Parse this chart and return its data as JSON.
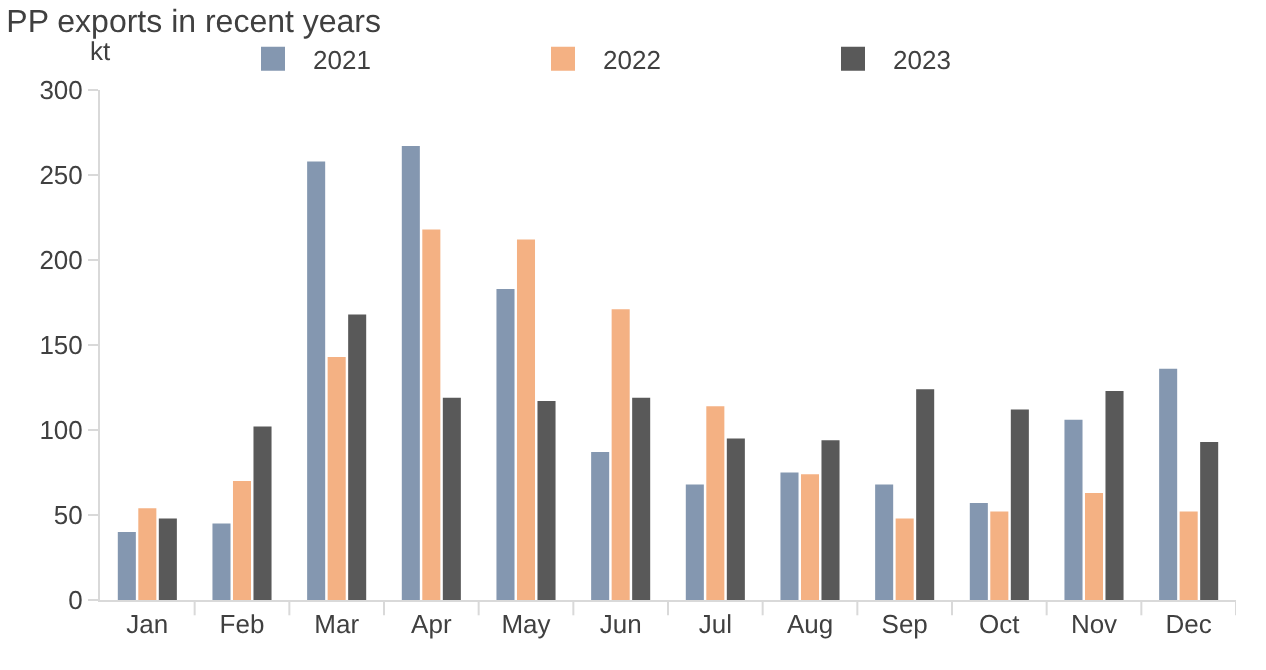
{
  "chart_data": {
    "type": "bar",
    "title": "PP exports in recent years",
    "ylabel": "kt",
    "categories": [
      "Jan",
      "Feb",
      "Mar",
      "Apr",
      "May",
      "Jun",
      "Jul",
      "Aug",
      "Sep",
      "Oct",
      "Nov",
      "Dec"
    ],
    "series": [
      {
        "name": "2021",
        "color": "#8497b0",
        "values": [
          40,
          45,
          258,
          267,
          183,
          87,
          68,
          75,
          68,
          57,
          106,
          136
        ]
      },
      {
        "name": "2022",
        "color": "#f4b183",
        "values": [
          54,
          70,
          143,
          218,
          212,
          171,
          114,
          74,
          48,
          52,
          63,
          52
        ]
      },
      {
        "name": "2023",
        "color": "#595959",
        "values": [
          48,
          102,
          168,
          119,
          117,
          119,
          95,
          94,
          124,
          112,
          123,
          93
        ]
      }
    ],
    "ylim": [
      0,
      300
    ],
    "yticks": [
      0,
      50,
      100,
      150,
      200,
      250,
      300
    ],
    "grid": false,
    "legend": "top"
  }
}
